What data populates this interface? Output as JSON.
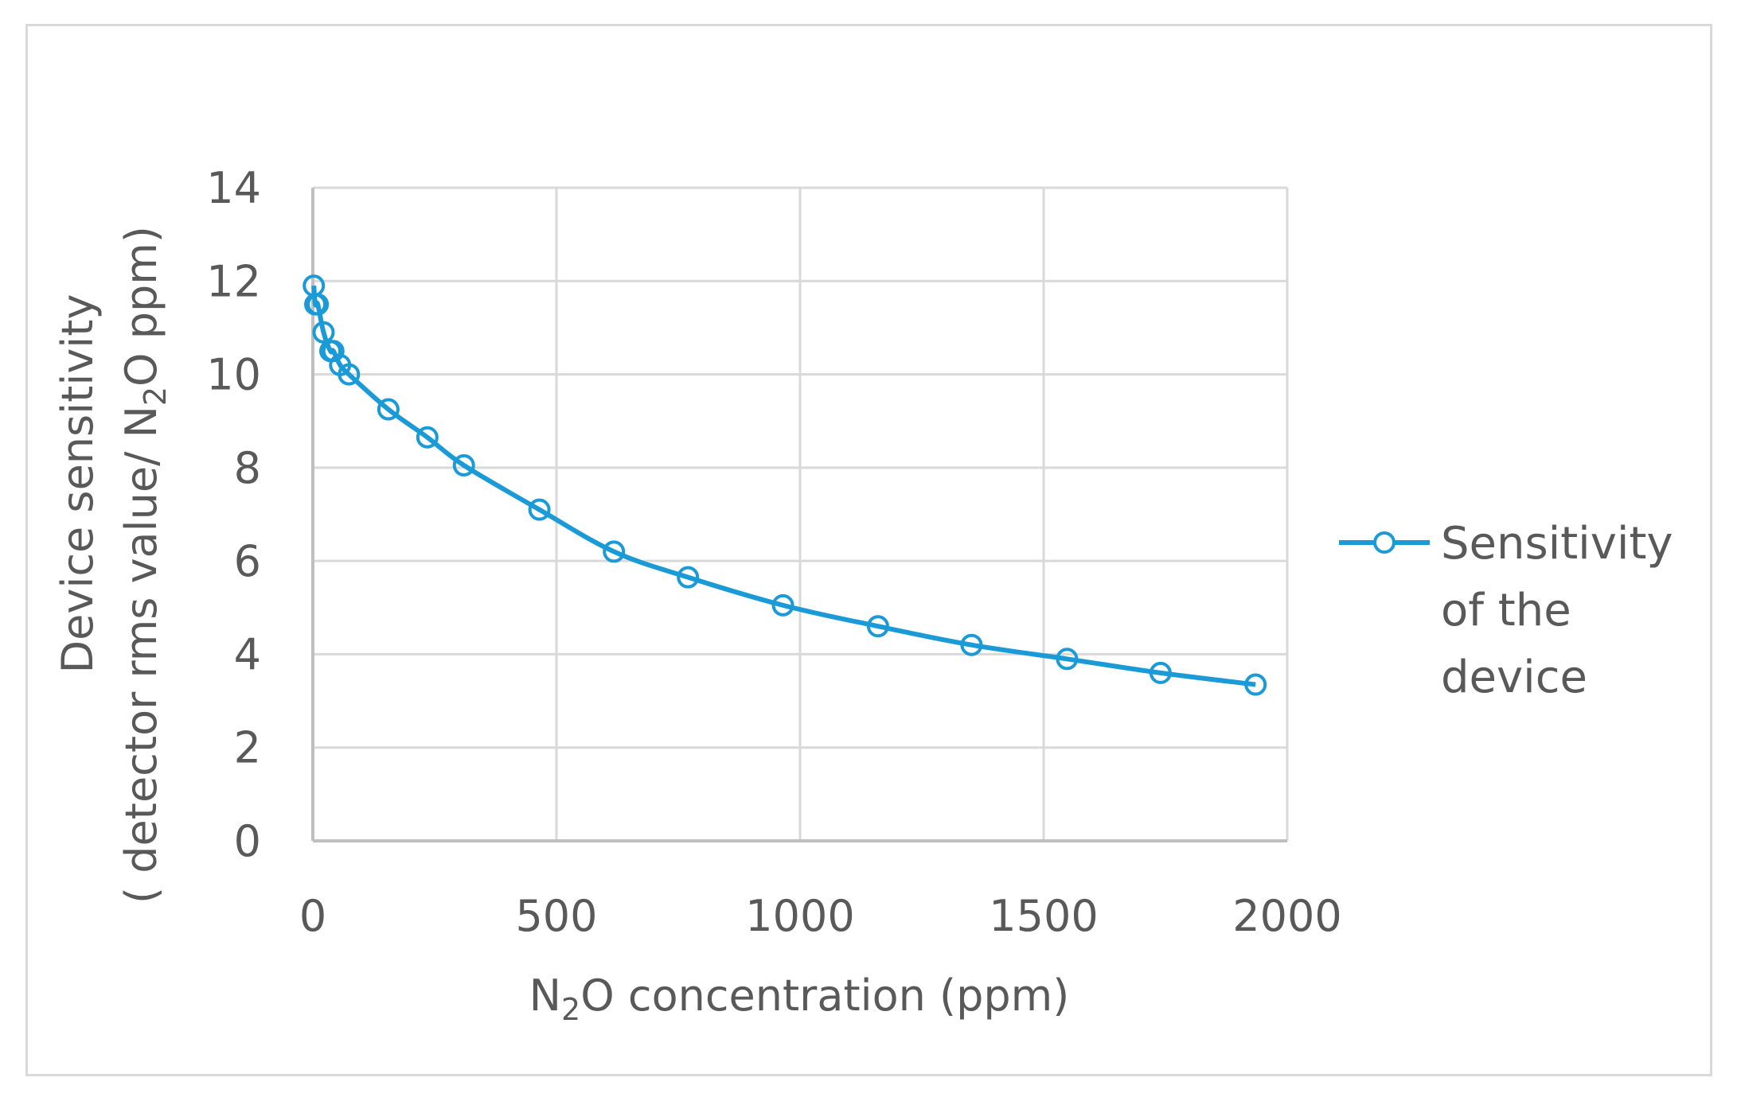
{
  "chart_data": {
    "type": "line",
    "title": "",
    "xlabel": {
      "pre": "N",
      "sub": "2",
      "post": "O concentration (ppm)"
    },
    "ylabel": {
      "line1": "Device sensitivity",
      "line2_pre": "( detector rms value/ N",
      "line2_sub": "2",
      "line2_post": "O ppm)"
    },
    "xlim": [
      0,
      2000
    ],
    "ylim": [
      0,
      14
    ],
    "xticks": [
      0,
      500,
      1000,
      1500,
      2000
    ],
    "yticks": [
      0,
      2,
      4,
      6,
      8,
      10,
      12,
      14
    ],
    "grid": true,
    "legend_position": "right",
    "series": [
      {
        "name": "Sensitivity of the device",
        "legend_lines": [
          "Sensitivity",
          "of the",
          "device"
        ],
        "color": "#1a9ad6",
        "marker": "open-circle",
        "x": [
          2,
          5,
          10,
          22,
          36,
          42,
          56,
          74,
          155,
          235,
          310,
          465,
          618,
          770,
          965,
          1160,
          1352,
          1548,
          1740,
          1935
        ],
        "y": [
          11.9,
          11.5,
          11.5,
          10.9,
          10.5,
          10.5,
          10.2,
          10.0,
          9.25,
          8.65,
          8.05,
          7.1,
          6.2,
          5.65,
          5.05,
          4.6,
          4.2,
          3.9,
          3.6,
          3.35
        ]
      }
    ]
  }
}
